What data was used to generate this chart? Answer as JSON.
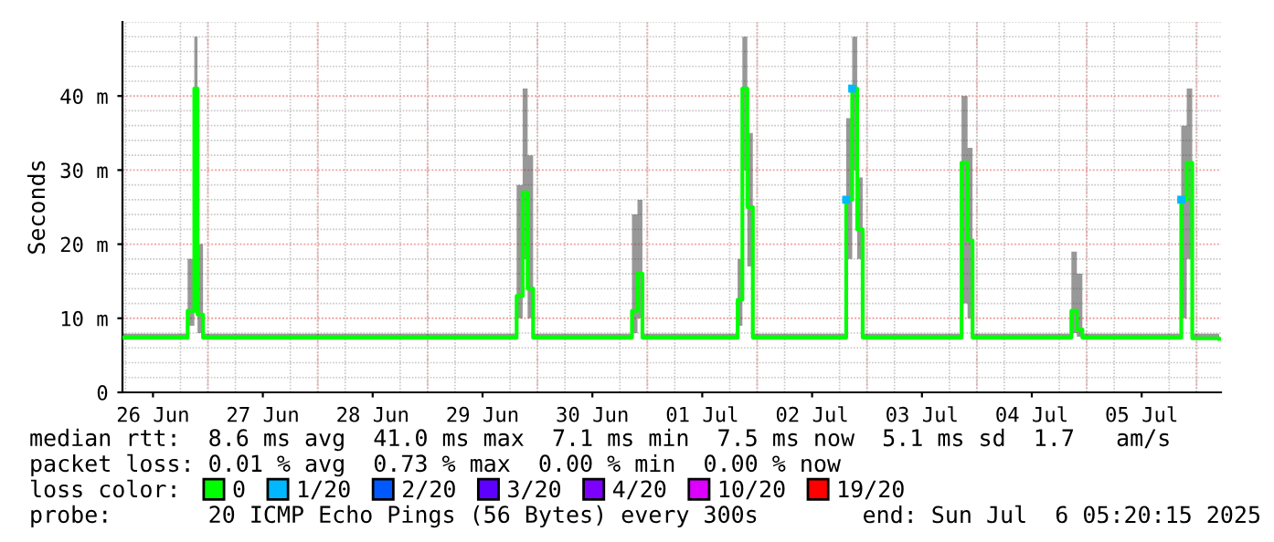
{
  "chart_data": {
    "type": "step",
    "ylabel": "Seconds",
    "xlim": [
      "2025-06-26T05:20",
      "2025-07-06T05:20"
    ],
    "xticks": [
      {
        "value": "2025-06-26T12:00",
        "label": "26 Jun"
      },
      {
        "value": "2025-06-27T12:00",
        "label": "27 Jun"
      },
      {
        "value": "2025-06-28T12:00",
        "label": "28 Jun"
      },
      {
        "value": "2025-06-29T12:00",
        "label": "29 Jun"
      },
      {
        "value": "2025-06-30T12:00",
        "label": "30 Jun"
      },
      {
        "value": "2025-07-01T12:00",
        "label": "01 Jul"
      },
      {
        "value": "2025-07-02T12:00",
        "label": "02 Jul"
      },
      {
        "value": "2025-07-03T12:00",
        "label": "03 Jul"
      },
      {
        "value": "2025-07-04T12:00",
        "label": "04 Jul"
      },
      {
        "value": "2025-07-05T12:00",
        "label": "05 Jul"
      }
    ],
    "ylim": [
      0,
      50
    ],
    "yticks": [
      0,
      {
        "value": 10,
        "label": "10 m"
      },
      {
        "value": 20,
        "label": "20 m"
      },
      {
        "value": 30,
        "label": "30 m"
      },
      {
        "value": 40,
        "label": "40 m"
      }
    ],
    "grid": true,
    "legend": "bottom",
    "legend_title": "loss color:",
    "series": [
      {
        "name": "0",
        "color": "#00ff00",
        "x": [
          "2025-06-26T05:20",
          "2025-06-26T19:34",
          "2025-06-26T21:02",
          "2025-06-26T21:44",
          "2025-06-26T22:56",
          "2025-06-29T19:27",
          "2025-06-29T20:46",
          "2025-06-29T21:51",
          "2025-06-29T23:03",
          "2025-06-30T20:39",
          "2025-06-30T21:51",
          "2025-06-30T22:56",
          "2025-07-01T19:44",
          "2025-07-01T20:46",
          "2025-07-01T21:51",
          "2025-07-01T23:03",
          "2025-07-02T19:27",
          "2025-07-02T20:46",
          "2025-07-02T21:51",
          "2025-07-02T23:03",
          "2025-07-03T20:39",
          "2025-07-03T21:58",
          "2025-07-03T23:03",
          "2025-07-04T20:39",
          "2025-07-04T21:51",
          "2025-07-04T23:03",
          "2025-07-05T20:39",
          "2025-07-05T21:51",
          "2025-07-05T23:03",
          "2025-07-06T04:56"
        ],
        "values": [
          7.4,
          11,
          41,
          10.5,
          7.4,
          13,
          27,
          14,
          7.4,
          11,
          16,
          7.4,
          12.5,
          41,
          25,
          7.4,
          26,
          41,
          22,
          7.4,
          31,
          20.5,
          7.4,
          11,
          8.5,
          7.4,
          26,
          31,
          7.3,
          7.2
        ],
        "lower": [
          7.1,
          9,
          30,
          8,
          7.1,
          10,
          18,
          10,
          7.1,
          8,
          10,
          7.1,
          9,
          30,
          17,
          7.1,
          18,
          30,
          18,
          7.1,
          12,
          10,
          7.1,
          8,
          7.5,
          7.1,
          10,
          18,
          7.1,
          7.1
        ],
        "upper": [
          7.9,
          18,
          48,
          20,
          7.9,
          28,
          41,
          32,
          7.9,
          24,
          26,
          7.9,
          18,
          48,
          35,
          7.9,
          37,
          48,
          29,
          7.9,
          40,
          33,
          7.9,
          19,
          16,
          7.9,
          36,
          41,
          7.9,
          7.9
        ]
      },
      {
        "name": "1/20",
        "color": "#00b8ff",
        "type": "scatter",
        "x": [
          "2025-07-02T19:27",
          "2025-07-02T20:46",
          "2025-07-05T20:39"
        ],
        "values": [
          26,
          41,
          26
        ]
      },
      {
        "name": "2/20",
        "color": "#0059ff",
        "type": "scatter"
      },
      {
        "name": "3/20",
        "color": "#5e00ff",
        "type": "scatter"
      },
      {
        "name": "4/20",
        "color": "#7e00ff",
        "type": "scatter"
      },
      {
        "name": "10/20",
        "color": "#dd00ff",
        "type": "scatter"
      },
      {
        "name": "19/20",
        "color": "#ff0000",
        "type": "scatter"
      }
    ],
    "annotations": [
      "median rtt:  8.6 ms avg  41.0 ms max  7.1 ms min  7.5 ms now  5.1 ms sd  1.7   am/s",
      "packet loss: 0.01 % avg  0.73 % max  0.00 % min  0.00 % now",
      "probe:       20 ICMP Echo Pings (56 Bytes) every 300s",
      "end: Sun Jul  6 05:20:15 2025"
    ]
  }
}
